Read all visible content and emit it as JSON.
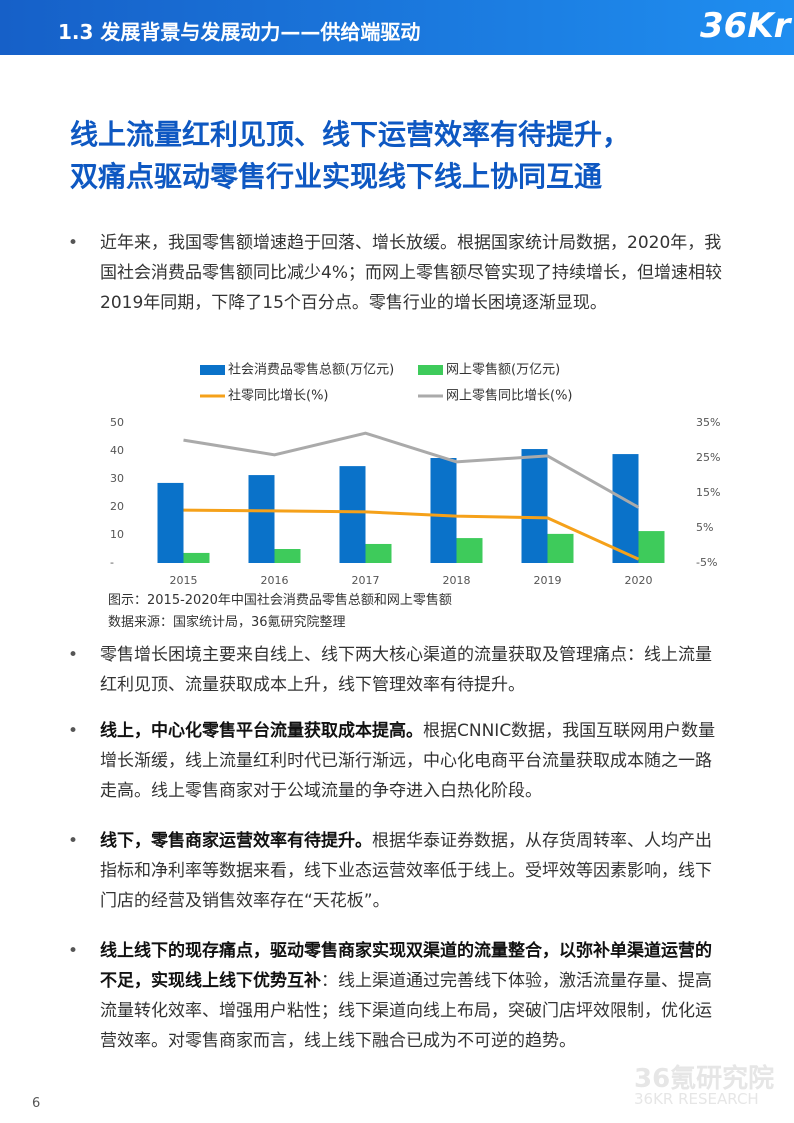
{
  "header": {
    "section": "1.3 发展背景与发展动力——供给端驱动",
    "logo": "36Kr"
  },
  "title": [
    "线上流量红利见顶、线下运营效率有待提升，",
    "双痛点驱动零售行业实现线下线上协同互通"
  ],
  "intro": "近年来，我国零售额增速趋于回落、增长放缓。根据国家统计局数据，2020年，我国社会消费品零售额同比减少4%；而网上零售额尽管实现了持续增长，但增速相较2019年同期，下降了15个百分点。零售行业的增长困境逐渐显现。",
  "chart_data": {
    "type": "bar-line",
    "categories": [
      "2015",
      "2016",
      "2017",
      "2018",
      "2019",
      "2020"
    ],
    "series": [
      {
        "name": "社会消费品零售总额(万亿元)",
        "color": "#0a72c9",
        "kind": "bar",
        "values": [
          28.6,
          31.4,
          34.6,
          37.5,
          40.7,
          38.9
        ]
      },
      {
        "name": "网上零售额(万亿元)",
        "color": "#3ecb5b",
        "kind": "bar",
        "values": [
          3.6,
          5,
          6.8,
          8.9,
          10.4,
          11.4
        ]
      },
      {
        "name": "社零同比增长(%)",
        "color": "#f5a11a",
        "kind": "line",
        "axis": "y2",
        "values": [
          10.1,
          9.9,
          9.6,
          8.4,
          7.9,
          -3.9
        ]
      },
      {
        "name": "网上零售同比增长(%)",
        "color": "#aaaaaa",
        "kind": "line",
        "axis": "y2",
        "values": [
          30.1,
          25.9,
          32.1,
          23.9,
          25.6,
          10.9
        ]
      }
    ],
    "ylim": [
      0,
      50
    ],
    "yticks": [
      {
        "value": 0,
        "label": "-"
      },
      10,
      20,
      30,
      40,
      50
    ],
    "y2lim": [
      -5,
      35
    ],
    "y2ticks": [
      {
        "value": -5,
        "label": "-5%"
      },
      {
        "value": 5,
        "label": "5%"
      },
      {
        "value": 15,
        "label": "15%"
      },
      {
        "value": 25,
        "label": "25%"
      },
      {
        "value": 35,
        "label": "35%"
      }
    ]
  },
  "figure": {
    "caption": "图示：2015-2020年中国社会消费品零售总额和网上零售额",
    "source": "数据来源：国家统计局，36氪研究院整理"
  },
  "bullets": [
    {
      "bold": "",
      "text": "零售增长困境主要来自线上、线下两大核心渠道的流量获取及管理痛点：线上流量红利见顶、流量获取成本上升，线下管理效率有待提升。"
    },
    {
      "bold": "线上，中心化零售平台流量获取成本提高。",
      "text": "根据CNNIC数据，我国互联网用户数量增长渐缓，线上流量红利时代已渐行渐远，中心化电商平台流量获取成本随之一路走高。线上零售商家对于公域流量的争夺进入白热化阶段。"
    },
    {
      "bold": "线下，零售商家运营效率有待提升。",
      "text": "根据华泰证券数据，从存货周转率、人均产出指标和净利率等数据来看，线下业态运营效率低于线上。受坪效等因素影响，线下门店的经营及销售效率存在“天花板”。"
    },
    {
      "bold": "线上线下的现存痛点，驱动零售商家实现双渠道的流量整合，以弥补单渠道运营的不足，实现线上线下优势互补",
      "text": "：线上渠道通过完善线下体验，激活流量存量、提高流量转化效率、增强用户粘性；线下渠道向线上布局，突破门店坪效限制，优化运营效率。对零售商家而言，线上线下融合已成为不可逆的趋势。"
    }
  ],
  "footer": {
    "page": "6",
    "watermark": "36氪研究院",
    "watermark_en": "36KR RESEARCH"
  }
}
